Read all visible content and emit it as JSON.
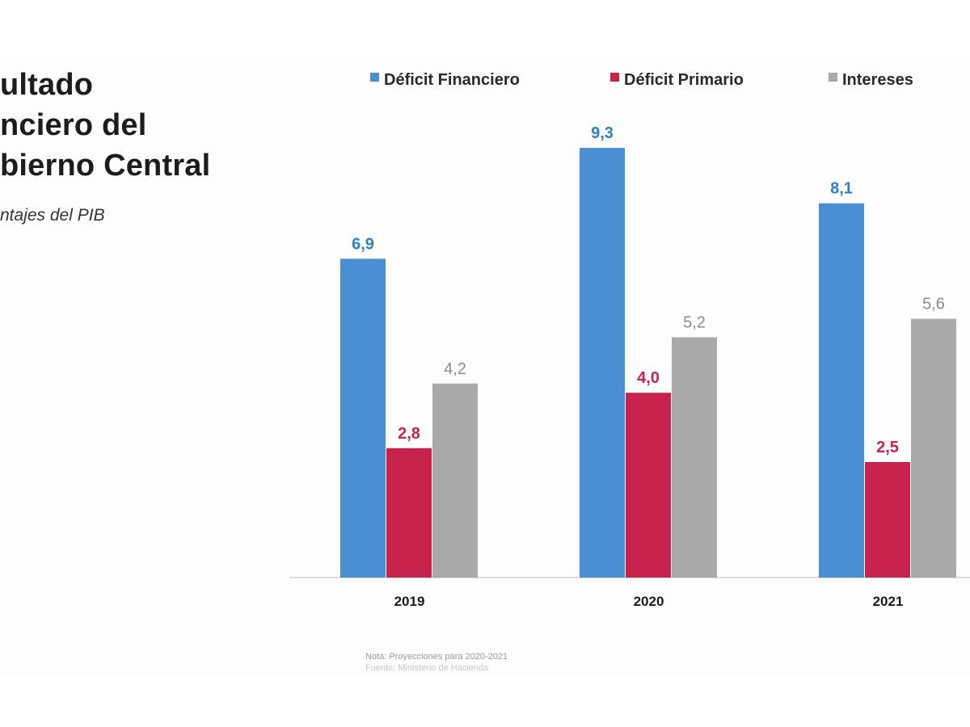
{
  "title_lines": [
    "ultado",
    "nciero del",
    "bierno Central"
  ],
  "subtitle": "ntajes del PIB",
  "notes": [
    "Nota: Proyecciones para 2020-2021",
    "Fuente: Ministerio de Hacienda"
  ],
  "chart_data": {
    "type": "bar",
    "categories": [
      "2019",
      "2020",
      "2021"
    ],
    "series": [
      {
        "name": "Déficit Financiero",
        "values": [
          6.9,
          9.3,
          8.1
        ],
        "labels": [
          "6,9",
          "9,3",
          "8,1"
        ],
        "color": "#4a8fd4",
        "label_color": "#2f7fc8"
      },
      {
        "name": "Déficit Primario",
        "values": [
          2.8,
          4.0,
          2.5
        ],
        "labels": [
          "2,8",
          "4,0",
          "2,5"
        ],
        "color": "#c8234d",
        "label_color": "#c8234d"
      },
      {
        "name": "Intereses",
        "values": [
          4.2,
          5.2,
          5.6
        ],
        "labels": [
          "4,2",
          "5,2",
          "5,6"
        ],
        "color": "#a9a9a9",
        "label_color": "#8c8c8c"
      }
    ],
    "ylim": [
      0,
      10
    ],
    "legend": "top",
    "grid": false
  }
}
